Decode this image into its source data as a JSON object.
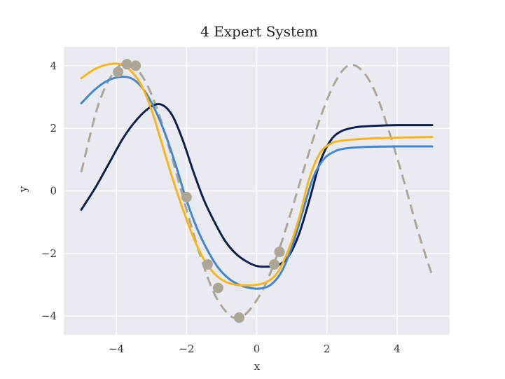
{
  "chart_data": {
    "type": "line",
    "title": "4 Expert System",
    "xlabel": "x",
    "ylabel": "y",
    "xlim": [
      -5.5,
      5.5
    ],
    "ylim": [
      -4.6,
      4.6
    ],
    "xticks": [
      -4,
      -2,
      0,
      2,
      4
    ],
    "yticks": [
      -4,
      -2,
      0,
      2,
      4
    ],
    "grid": true,
    "colors": {
      "background": "#EAEAF2",
      "grid": "#FFFFFF",
      "navy": "#0B1F4D",
      "blue": "#4387D1",
      "gold": "#FDB515",
      "truth": "#ABA696"
    },
    "series": [
      {
        "style": "dashed",
        "color": "#ABA696",
        "x": [
          -5,
          -4.5,
          -4,
          -3.6,
          -3.2,
          -2.8,
          -2.4,
          -2,
          -1.6,
          -1.2,
          -0.8,
          -0.5,
          -0.2,
          0.2,
          0.6,
          1,
          1.4,
          1.8,
          2.2,
          2.6,
          3,
          3.4,
          3.8,
          4.2,
          4.6,
          5
        ],
        "y": [
          0.6,
          2.8,
          3.9,
          4.05,
          3.55,
          2.5,
          1.0,
          -0.6,
          -2.1,
          -3.3,
          -3.95,
          -4.05,
          -3.8,
          -3.1,
          -2.0,
          -0.6,
          0.9,
          2.3,
          3.4,
          4.0,
          3.85,
          3.1,
          1.8,
          0.3,
          -1.3,
          -2.7
        ]
      },
      {
        "style": "solid",
        "color": "#0B1F4D",
        "x": [
          -5,
          -4.6,
          -4.2,
          -3.8,
          -3.4,
          -3.0,
          -2.7,
          -2.4,
          -2.1,
          -1.8,
          -1.5,
          -1.2,
          -0.9,
          -0.6,
          -0.3,
          0,
          0.3,
          0.6,
          0.9,
          1.2,
          1.5,
          1.8,
          2.1,
          2.4,
          2.8,
          3.2,
          4,
          5
        ],
        "y": [
          -0.6,
          0.1,
          0.9,
          1.7,
          2.3,
          2.7,
          2.75,
          2.4,
          1.6,
          0.6,
          -0.3,
          -1.0,
          -1.6,
          -2.0,
          -2.25,
          -2.4,
          -2.42,
          -2.38,
          -2.1,
          -1.4,
          -0.3,
          0.9,
          1.6,
          1.9,
          2.03,
          2.07,
          2.1,
          2.1
        ]
      },
      {
        "style": "solid",
        "color": "#4387D1",
        "x": [
          -5,
          -4.6,
          -4.2,
          -3.8,
          -3.5,
          -3.2,
          -2.9,
          -2.6,
          -2.3,
          -2.0,
          -1.7,
          -1.4,
          -1.1,
          -0.8,
          -0.5,
          -0.2,
          0.1,
          0.4,
          0.7,
          1.0,
          1.3,
          1.6,
          1.9,
          2.2,
          2.5,
          3,
          4,
          5
        ],
        "y": [
          2.8,
          3.25,
          3.55,
          3.65,
          3.55,
          3.2,
          2.6,
          1.8,
          0.8,
          -0.3,
          -1.2,
          -1.9,
          -2.45,
          -2.8,
          -3.0,
          -3.1,
          -3.12,
          -3.0,
          -2.6,
          -1.8,
          -0.7,
          0.4,
          1.0,
          1.25,
          1.35,
          1.4,
          1.42,
          1.42
        ]
      },
      {
        "style": "solid",
        "color": "#FDB515",
        "x": [
          -5,
          -4.6,
          -4.2,
          -3.9,
          -3.6,
          -3.3,
          -3.0,
          -2.7,
          -2.4,
          -2.1,
          -1.8,
          -1.5,
          -1.2,
          -0.9,
          -0.6,
          -0.3,
          0,
          0.3,
          0.6,
          0.9,
          1.2,
          1.5,
          1.8,
          2.1,
          2.4,
          3,
          4,
          5
        ],
        "y": [
          3.6,
          3.9,
          4.05,
          4.05,
          3.85,
          3.4,
          2.6,
          1.5,
          0.4,
          -0.6,
          -1.5,
          -2.2,
          -2.65,
          -2.9,
          -3.0,
          -3.02,
          -3.0,
          -2.9,
          -2.6,
          -1.9,
          -0.9,
          0.4,
          1.2,
          1.5,
          1.6,
          1.66,
          1.7,
          1.72
        ]
      }
    ],
    "points": {
      "color": "#ABA696",
      "x": [
        -3.95,
        -3.7,
        -3.45,
        -2.0,
        -1.4,
        -1.1,
        -0.5,
        0.5,
        0.65
      ],
      "y": [
        3.8,
        4.05,
        4.0,
        -0.2,
        -2.35,
        -3.1,
        -4.05,
        -2.35,
        -1.95
      ]
    }
  }
}
